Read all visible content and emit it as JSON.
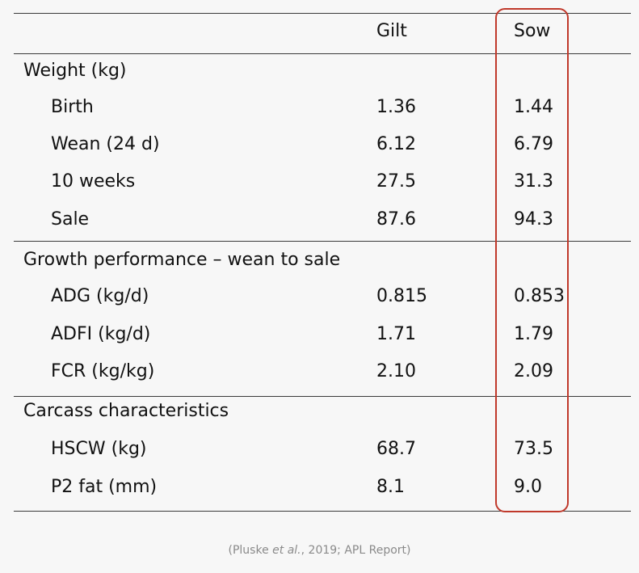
{
  "table": {
    "columns": {
      "gilt": "Gilt",
      "sow": "Sow"
    },
    "sections": [
      {
        "title": "Weight (kg)",
        "rows": [
          {
            "label": "Birth",
            "gilt": "1.36",
            "sow": "1.44"
          },
          {
            "label": "Wean (24 d)",
            "gilt": "6.12",
            "sow": "6.79"
          },
          {
            "label": "10 weeks",
            "gilt": "27.5",
            "sow": "31.3"
          },
          {
            "label": "Sale",
            "gilt": "87.6",
            "sow": "94.3"
          }
        ]
      },
      {
        "title": "Growth performance – wean to sale",
        "rows": [
          {
            "label": "ADG (kg/d)",
            "gilt": "0.815",
            "sow": "0.853"
          },
          {
            "label": "ADFI (kg/d)",
            "gilt": "1.71",
            "sow": "1.79"
          },
          {
            "label": "FCR (kg/kg)",
            "gilt": "2.10",
            "sow": "2.09"
          }
        ]
      },
      {
        "title": "Carcass characteristics",
        "rows": [
          {
            "label": "HSCW (kg)",
            "gilt": "68.7",
            "sow": "73.5"
          },
          {
            "label": "P2 fat (mm)",
            "gilt": "8.1",
            "sow": "9.0"
          }
        ]
      }
    ]
  },
  "citation": {
    "before": "(Pluske ",
    "emphasis": "et al.",
    "after": ", 2019; APL Report)"
  },
  "colors": {
    "highlight_box": "#c0392b",
    "rule": "#3a3a3a",
    "background": "#f7f7f7",
    "citation_text": "#8a8a8a"
  }
}
